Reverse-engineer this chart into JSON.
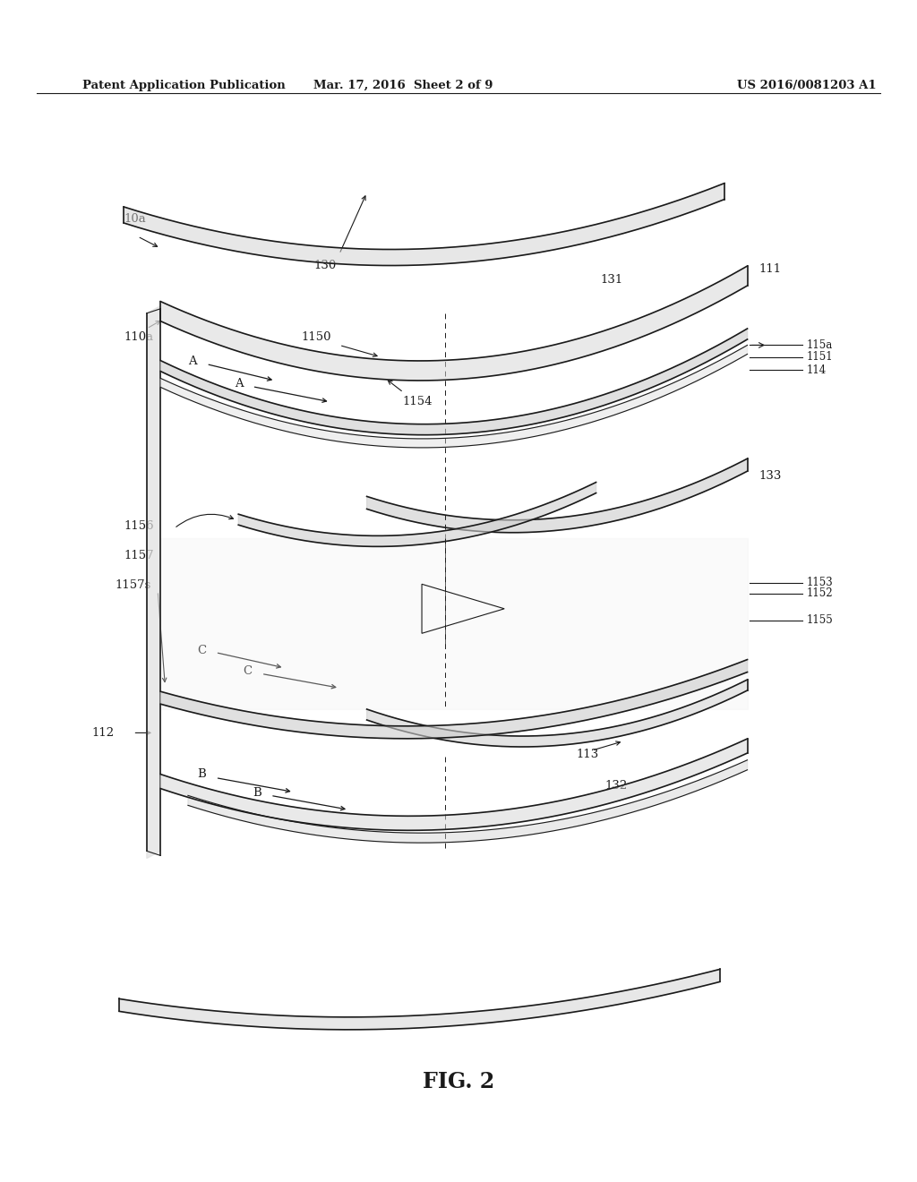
{
  "bg_color": "#ffffff",
  "line_color": "#1a1a1a",
  "header_left": "Patent Application Publication",
  "header_center": "Mar. 17, 2016  Sheet 2 of 9",
  "header_right": "US 2016/0081203 A1",
  "figure_label": "FIG. 2"
}
